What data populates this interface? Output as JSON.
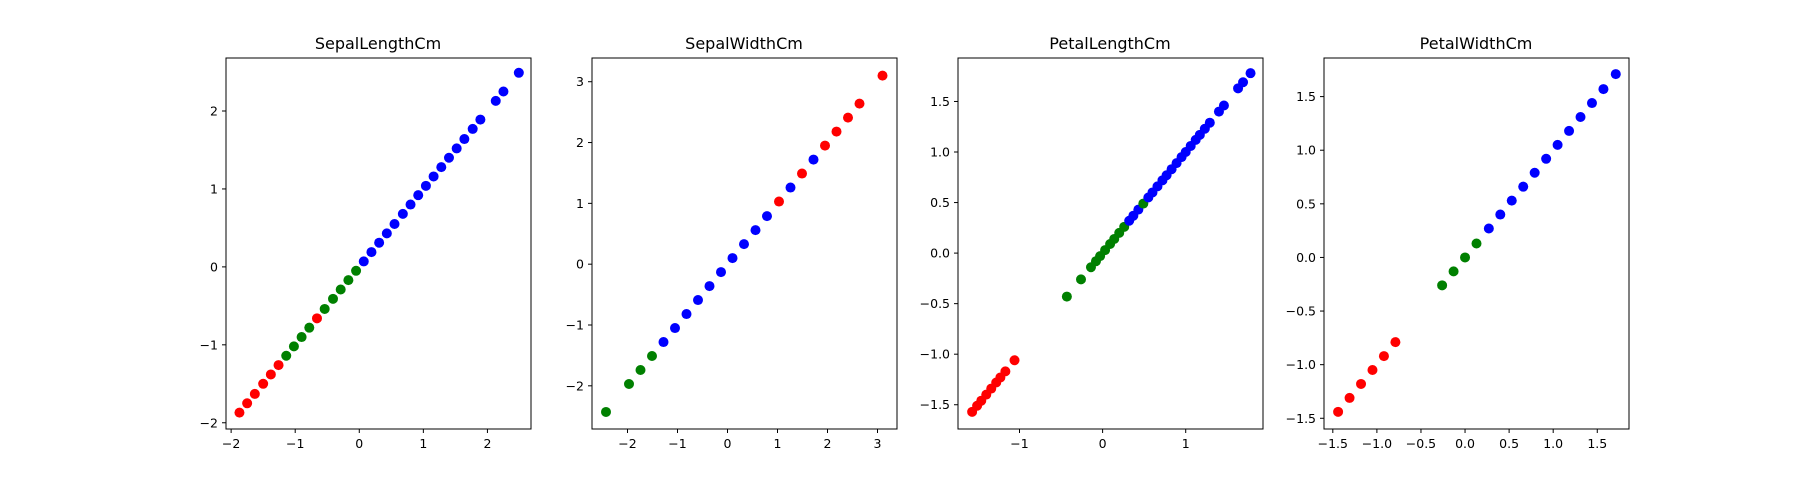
{
  "chart_data": [
    {
      "type": "scatter",
      "title": "SepalLengthCm",
      "xlim": [
        -2.08,
        2.68
      ],
      "ylim": [
        -2.08,
        2.68
      ],
      "xticks": [
        -2,
        -1,
        0,
        1,
        2
      ],
      "yticks": [
        -2,
        -1,
        0,
        1,
        2
      ],
      "points": [
        {
          "x": -1.87,
          "y": -1.87,
          "color": "red"
        },
        {
          "x": -1.75,
          "y": -1.75,
          "color": "red"
        },
        {
          "x": -1.63,
          "y": -1.63,
          "color": "red"
        },
        {
          "x": -1.5,
          "y": -1.5,
          "color": "red"
        },
        {
          "x": -1.38,
          "y": -1.38,
          "color": "red"
        },
        {
          "x": -1.26,
          "y": -1.26,
          "color": "red"
        },
        {
          "x": -1.14,
          "y": -1.14,
          "color": "green"
        },
        {
          "x": -1.02,
          "y": -1.02,
          "color": "green"
        },
        {
          "x": -0.9,
          "y": -0.9,
          "color": "green"
        },
        {
          "x": -0.78,
          "y": -0.78,
          "color": "green"
        },
        {
          "x": -0.66,
          "y": -0.66,
          "color": "red"
        },
        {
          "x": -0.54,
          "y": -0.54,
          "color": "green"
        },
        {
          "x": -0.41,
          "y": -0.41,
          "color": "green"
        },
        {
          "x": -0.29,
          "y": -0.29,
          "color": "green"
        },
        {
          "x": -0.17,
          "y": -0.17,
          "color": "green"
        },
        {
          "x": -0.05,
          "y": -0.05,
          "color": "green"
        },
        {
          "x": 0.07,
          "y": 0.07,
          "color": "blue"
        },
        {
          "x": 0.19,
          "y": 0.19,
          "color": "blue"
        },
        {
          "x": 0.31,
          "y": 0.31,
          "color": "blue"
        },
        {
          "x": 0.43,
          "y": 0.43,
          "color": "blue"
        },
        {
          "x": 0.55,
          "y": 0.55,
          "color": "blue"
        },
        {
          "x": 0.68,
          "y": 0.68,
          "color": "blue"
        },
        {
          "x": 0.8,
          "y": 0.8,
          "color": "blue"
        },
        {
          "x": 0.92,
          "y": 0.92,
          "color": "blue"
        },
        {
          "x": 1.04,
          "y": 1.04,
          "color": "blue"
        },
        {
          "x": 1.16,
          "y": 1.16,
          "color": "blue"
        },
        {
          "x": 1.28,
          "y": 1.28,
          "color": "blue"
        },
        {
          "x": 1.4,
          "y": 1.4,
          "color": "blue"
        },
        {
          "x": 1.52,
          "y": 1.52,
          "color": "blue"
        },
        {
          "x": 1.64,
          "y": 1.64,
          "color": "blue"
        },
        {
          "x": 1.77,
          "y": 1.77,
          "color": "blue"
        },
        {
          "x": 1.89,
          "y": 1.89,
          "color": "blue"
        },
        {
          "x": 2.13,
          "y": 2.13,
          "color": "blue"
        },
        {
          "x": 2.25,
          "y": 2.25,
          "color": "blue"
        },
        {
          "x": 2.49,
          "y": 2.49,
          "color": "blue"
        }
      ]
    },
    {
      "type": "scatter",
      "title": "SepalWidthCm",
      "xlim": [
        -2.71,
        3.39
      ],
      "ylim": [
        -2.71,
        3.39
      ],
      "xticks": [
        -2,
        -1,
        0,
        1,
        2,
        3
      ],
      "yticks": [
        -2,
        -1,
        0,
        1,
        2,
        3
      ],
      "points": [
        {
          "x": -2.43,
          "y": -2.43,
          "color": "green"
        },
        {
          "x": -1.97,
          "y": -1.97,
          "color": "green"
        },
        {
          "x": -1.74,
          "y": -1.74,
          "color": "green"
        },
        {
          "x": -1.51,
          "y": -1.51,
          "color": "green"
        },
        {
          "x": -1.28,
          "y": -1.28,
          "color": "blue"
        },
        {
          "x": -1.05,
          "y": -1.05,
          "color": "blue"
        },
        {
          "x": -0.82,
          "y": -0.82,
          "color": "blue"
        },
        {
          "x": -0.59,
          "y": -0.59,
          "color": "blue"
        },
        {
          "x": -0.36,
          "y": -0.36,
          "color": "blue"
        },
        {
          "x": -0.13,
          "y": -0.13,
          "color": "blue"
        },
        {
          "x": 0.1,
          "y": 0.1,
          "color": "blue"
        },
        {
          "x": 0.33,
          "y": 0.33,
          "color": "blue"
        },
        {
          "x": 0.56,
          "y": 0.56,
          "color": "blue"
        },
        {
          "x": 0.79,
          "y": 0.79,
          "color": "blue"
        },
        {
          "x": 1.03,
          "y": 1.03,
          "color": "red"
        },
        {
          "x": 1.26,
          "y": 1.26,
          "color": "blue"
        },
        {
          "x": 1.49,
          "y": 1.49,
          "color": "red"
        },
        {
          "x": 1.72,
          "y": 1.72,
          "color": "blue"
        },
        {
          "x": 1.95,
          "y": 1.95,
          "color": "red"
        },
        {
          "x": 2.18,
          "y": 2.18,
          "color": "red"
        },
        {
          "x": 2.41,
          "y": 2.41,
          "color": "red"
        },
        {
          "x": 2.64,
          "y": 2.64,
          "color": "red"
        },
        {
          "x": 3.1,
          "y": 3.1,
          "color": "red"
        }
      ]
    },
    {
      "type": "scatter",
      "title": "PetalLengthCm",
      "xlim": [
        -1.74,
        1.93
      ],
      "ylim": [
        -1.74,
        1.93
      ],
      "xticks": [
        -1,
        0,
        1
      ],
      "yticks": [
        -1.5,
        -1.0,
        -0.5,
        0.0,
        0.5,
        1.0,
        1.5
      ],
      "points": [
        {
          "x": -1.57,
          "y": -1.57,
          "color": "red"
        },
        {
          "x": -1.51,
          "y": -1.51,
          "color": "red"
        },
        {
          "x": -1.46,
          "y": -1.46,
          "color": "red"
        },
        {
          "x": -1.4,
          "y": -1.4,
          "color": "red"
        },
        {
          "x": -1.34,
          "y": -1.34,
          "color": "red"
        },
        {
          "x": -1.28,
          "y": -1.28,
          "color": "red"
        },
        {
          "x": -1.23,
          "y": -1.23,
          "color": "red"
        },
        {
          "x": -1.17,
          "y": -1.17,
          "color": "red"
        },
        {
          "x": -1.06,
          "y": -1.06,
          "color": "red"
        },
        {
          "x": -0.43,
          "y": -0.43,
          "color": "green"
        },
        {
          "x": -0.26,
          "y": -0.26,
          "color": "green"
        },
        {
          "x": -0.14,
          "y": -0.14,
          "color": "green"
        },
        {
          "x": -0.08,
          "y": -0.08,
          "color": "green"
        },
        {
          "x": -0.03,
          "y": -0.03,
          "color": "green"
        },
        {
          "x": 0.03,
          "y": 0.03,
          "color": "green"
        },
        {
          "x": 0.09,
          "y": 0.09,
          "color": "green"
        },
        {
          "x": 0.14,
          "y": 0.14,
          "color": "green"
        },
        {
          "x": 0.2,
          "y": 0.2,
          "color": "green"
        },
        {
          "x": 0.26,
          "y": 0.26,
          "color": "green"
        },
        {
          "x": 0.32,
          "y": 0.32,
          "color": "blue"
        },
        {
          "x": 0.37,
          "y": 0.37,
          "color": "blue"
        },
        {
          "x": 0.43,
          "y": 0.43,
          "color": "blue"
        },
        {
          "x": 0.49,
          "y": 0.49,
          "color": "green"
        },
        {
          "x": 0.55,
          "y": 0.55,
          "color": "blue"
        },
        {
          "x": 0.6,
          "y": 0.6,
          "color": "blue"
        },
        {
          "x": 0.66,
          "y": 0.66,
          "color": "blue"
        },
        {
          "x": 0.72,
          "y": 0.72,
          "color": "blue"
        },
        {
          "x": 0.77,
          "y": 0.77,
          "color": "blue"
        },
        {
          "x": 0.83,
          "y": 0.83,
          "color": "blue"
        },
        {
          "x": 0.89,
          "y": 0.89,
          "color": "blue"
        },
        {
          "x": 0.95,
          "y": 0.95,
          "color": "blue"
        },
        {
          "x": 1.0,
          "y": 1.0,
          "color": "blue"
        },
        {
          "x": 1.06,
          "y": 1.06,
          "color": "blue"
        },
        {
          "x": 1.12,
          "y": 1.12,
          "color": "blue"
        },
        {
          "x": 1.17,
          "y": 1.17,
          "color": "blue"
        },
        {
          "x": 1.23,
          "y": 1.23,
          "color": "blue"
        },
        {
          "x": 1.29,
          "y": 1.29,
          "color": "blue"
        },
        {
          "x": 1.4,
          "y": 1.4,
          "color": "blue"
        },
        {
          "x": 1.46,
          "y": 1.46,
          "color": "blue"
        },
        {
          "x": 1.63,
          "y": 1.63,
          "color": "blue"
        },
        {
          "x": 1.69,
          "y": 1.69,
          "color": "blue"
        },
        {
          "x": 1.78,
          "y": 1.78,
          "color": "blue"
        }
      ]
    },
    {
      "type": "scatter",
      "title": "PetalWidthCm",
      "xlim": [
        -1.6,
        1.86
      ],
      "ylim": [
        -1.6,
        1.86
      ],
      "xticks": [
        -1.5,
        -1.0,
        -0.5,
        0.0,
        0.5,
        1.0,
        1.5
      ],
      "yticks": [
        -1.5,
        -1.0,
        -0.5,
        0.0,
        0.5,
        1.0,
        1.5
      ],
      "points": [
        {
          "x": -1.44,
          "y": -1.44,
          "color": "red"
        },
        {
          "x": -1.31,
          "y": -1.31,
          "color": "red"
        },
        {
          "x": -1.18,
          "y": -1.18,
          "color": "red"
        },
        {
          "x": -1.05,
          "y": -1.05,
          "color": "red"
        },
        {
          "x": -0.92,
          "y": -0.92,
          "color": "red"
        },
        {
          "x": -0.79,
          "y": -0.79,
          "color": "red"
        },
        {
          "x": -0.26,
          "y": -0.26,
          "color": "green"
        },
        {
          "x": -0.13,
          "y": -0.13,
          "color": "green"
        },
        {
          "x": 0.0,
          "y": 0.0,
          "color": "green"
        },
        {
          "x": 0.13,
          "y": 0.13,
          "color": "green"
        },
        {
          "x": 0.27,
          "y": 0.27,
          "color": "blue"
        },
        {
          "x": 0.4,
          "y": 0.4,
          "color": "blue"
        },
        {
          "x": 0.53,
          "y": 0.53,
          "color": "blue"
        },
        {
          "x": 0.66,
          "y": 0.66,
          "color": "blue"
        },
        {
          "x": 0.79,
          "y": 0.79,
          "color": "blue"
        },
        {
          "x": 0.92,
          "y": 0.92,
          "color": "blue"
        },
        {
          "x": 1.05,
          "y": 1.05,
          "color": "blue"
        },
        {
          "x": 1.18,
          "y": 1.18,
          "color": "blue"
        },
        {
          "x": 1.31,
          "y": 1.31,
          "color": "blue"
        },
        {
          "x": 1.44,
          "y": 1.44,
          "color": "blue"
        },
        {
          "x": 1.57,
          "y": 1.57,
          "color": "blue"
        },
        {
          "x": 1.71,
          "y": 1.71,
          "color": "blue"
        }
      ]
    }
  ],
  "colors": {
    "red": "#ff0000",
    "green": "#008000",
    "blue": "#0000ff",
    "axis": "#000000",
    "background": "#ffffff"
  }
}
